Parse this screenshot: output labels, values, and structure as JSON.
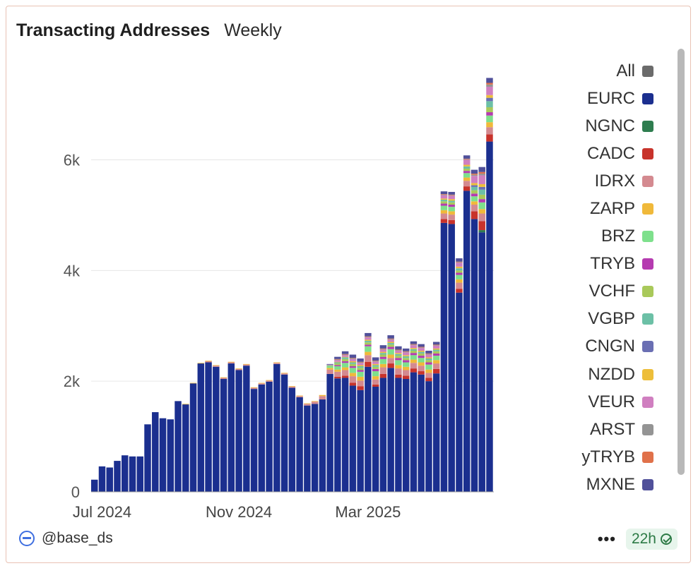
{
  "header": {
    "title": "Transacting Addresses",
    "subtitle": "Weekly"
  },
  "footer": {
    "handle": "@base_ds",
    "more": "•••",
    "freshness": "22h"
  },
  "legend": [
    {
      "label": "All",
      "color": "#6b6b6b"
    },
    {
      "label": "EURC",
      "color": "#1b2f8f"
    },
    {
      "label": "NGNC",
      "color": "#2e7d4f"
    },
    {
      "label": "CADC",
      "color": "#c8332b"
    },
    {
      "label": "IDRX",
      "color": "#d48a90"
    },
    {
      "label": "ZARP",
      "color": "#f0b93a"
    },
    {
      "label": "BRZ",
      "color": "#7ee08c"
    },
    {
      "label": "TRYB",
      "color": "#b53bb0"
    },
    {
      "label": "VCHF",
      "color": "#a9c95a"
    },
    {
      "label": "VGBP",
      "color": "#6cc0a6"
    },
    {
      "label": "CNGN",
      "color": "#6a6fb3"
    },
    {
      "label": "NZDD",
      "color": "#edbe3a"
    },
    {
      "label": "VEUR",
      "color": "#d07fc0"
    },
    {
      "label": "ARST",
      "color": "#949494"
    },
    {
      "label": "yTRYB",
      "color": "#e0714a"
    },
    {
      "label": "MXNE",
      "color": "#50509a"
    }
  ],
  "chart_data": {
    "type": "bar",
    "stacked": true,
    "title": "Transacting Addresses",
    "subtitle": "Weekly",
    "y_ticks": [
      "0",
      "2k",
      "4k",
      "6k"
    ],
    "x_ticks": [
      "Jul 2024",
      "Nov 2024",
      "Mar 2025"
    ],
    "ylim": [
      0,
      7600
    ],
    "grid": true,
    "legend_position": "right",
    "x": [
      "2024-06-24",
      "2024-07-01",
      "2024-07-08",
      "2024-07-15",
      "2024-07-22",
      "2024-07-29",
      "2024-08-05",
      "2024-08-12",
      "2024-08-19",
      "2024-08-26",
      "2024-09-02",
      "2024-09-09",
      "2024-09-16",
      "2024-09-23",
      "2024-09-30",
      "2024-10-07",
      "2024-10-14",
      "2024-10-21",
      "2024-10-28",
      "2024-11-04",
      "2024-11-11",
      "2024-11-18",
      "2024-11-25",
      "2024-12-02",
      "2024-12-09",
      "2024-12-16",
      "2024-12-23",
      "2024-12-30",
      "2025-01-06",
      "2025-01-13",
      "2025-01-20",
      "2025-01-27",
      "2025-02-03",
      "2025-02-10",
      "2025-02-17",
      "2025-02-24",
      "2025-03-03",
      "2025-03-10",
      "2025-03-17",
      "2025-03-24",
      "2025-03-31",
      "2025-04-07",
      "2025-04-14",
      "2025-04-21",
      "2025-04-28",
      "2025-05-05",
      "2025-05-12",
      "2025-05-19",
      "2025-05-26",
      "2025-06-02",
      "2025-06-09",
      "2025-06-16",
      "2025-06-23"
    ],
    "series": [
      {
        "name": "EURC",
        "values": [
          220,
          460,
          440,
          560,
          660,
          640,
          640,
          1220,
          1440,
          1330,
          1310,
          1640,
          1580,
          1960,
          2320,
          2340,
          2260,
          2040,
          2320,
          2200,
          2280,
          1860,
          1940,
          1990,
          2310,
          2120,
          1880,
          1710,
          1560,
          1590,
          1670,
          2130,
          2050,
          2060,
          1920,
          1840,
          2260,
          1900,
          2060,
          2240,
          2060,
          2040,
          2160,
          2120,
          2000,
          2140,
          4860,
          4840,
          3600,
          5440,
          4930,
          4690,
          6330
        ]
      },
      {
        "name": "NGNC",
        "values": [
          0,
          0,
          0,
          0,
          0,
          0,
          0,
          0,
          0,
          0,
          0,
          0,
          0,
          0,
          0,
          0,
          0,
          0,
          0,
          0,
          0,
          0,
          0,
          0,
          0,
          0,
          0,
          0,
          0,
          0,
          0,
          0,
          0,
          0,
          0,
          0,
          0,
          0,
          0,
          0,
          0,
          0,
          0,
          0,
          0,
          0,
          0,
          0,
          0,
          0,
          0,
          40,
          0
        ]
      },
      {
        "name": "CADC",
        "values": [
          0,
          0,
          0,
          0,
          0,
          0,
          0,
          0,
          0,
          0,
          0,
          0,
          0,
          0,
          0,
          0,
          0,
          0,
          0,
          0,
          0,
          0,
          0,
          0,
          0,
          0,
          0,
          0,
          0,
          0,
          0,
          0,
          30,
          40,
          50,
          70,
          90,
          40,
          70,
          80,
          60,
          60,
          70,
          60,
          60,
          80,
          70,
          70,
          70,
          80,
          140,
          160,
          130
        ]
      },
      {
        "name": "IDRX",
        "values": [
          0,
          0,
          0,
          0,
          0,
          0,
          0,
          0,
          0,
          0,
          0,
          0,
          0,
          0,
          0,
          20,
          20,
          20,
          20,
          20,
          20,
          20,
          20,
          20,
          20,
          20,
          20,
          20,
          30,
          40,
          60,
          80,
          90,
          100,
          120,
          100,
          120,
          90,
          120,
          100,
          110,
          100,
          100,
          100,
          90,
          100,
          100,
          100,
          110,
          100,
          120,
          140,
          130
        ]
      },
      {
        "name": "ZARP",
        "values": [
          0,
          0,
          0,
          0,
          0,
          0,
          0,
          0,
          0,
          0,
          0,
          0,
          10,
          10,
          10,
          10,
          10,
          10,
          10,
          10,
          10,
          10,
          10,
          10,
          10,
          10,
          10,
          10,
          10,
          10,
          20,
          30,
          40,
          50,
          60,
          70,
          60,
          60,
          60,
          60,
          60,
          60,
          60,
          60,
          60,
          60,
          60,
          60,
          60,
          60,
          60,
          80,
          90
        ]
      },
      {
        "name": "BRZ",
        "values": [
          0,
          0,
          0,
          0,
          0,
          0,
          0,
          0,
          0,
          0,
          0,
          0,
          0,
          0,
          0,
          0,
          0,
          0,
          0,
          0,
          0,
          0,
          0,
          0,
          0,
          0,
          0,
          0,
          0,
          0,
          0,
          30,
          60,
          80,
          90,
          90,
          100,
          90,
          90,
          100,
          90,
          80,
          80,
          80,
          90,
          80,
          80,
          80,
          80,
          80,
          90,
          120,
          120
        ]
      },
      {
        "name": "TRYB",
        "values": [
          0,
          0,
          0,
          0,
          0,
          0,
          0,
          0,
          0,
          0,
          0,
          0,
          0,
          0,
          0,
          0,
          0,
          0,
          0,
          0,
          0,
          0,
          0,
          0,
          0,
          0,
          0,
          0,
          0,
          0,
          0,
          0,
          20,
          30,
          30,
          30,
          30,
          40,
          40,
          40,
          40,
          40,
          40,
          40,
          40,
          40,
          40,
          40,
          40,
          40,
          50,
          60,
          60
        ]
      },
      {
        "name": "VCHF",
        "values": [
          0,
          0,
          0,
          0,
          0,
          0,
          0,
          0,
          0,
          0,
          0,
          0,
          0,
          0,
          0,
          0,
          0,
          0,
          0,
          0,
          0,
          0,
          0,
          0,
          0,
          0,
          0,
          0,
          0,
          0,
          0,
          10,
          30,
          40,
          40,
          40,
          40,
          40,
          40,
          40,
          40,
          40,
          40,
          40,
          40,
          40,
          40,
          40,
          40,
          40,
          60,
          80,
          90
        ]
      },
      {
        "name": "VGBP",
        "values": [
          0,
          0,
          0,
          0,
          0,
          0,
          0,
          0,
          0,
          0,
          0,
          0,
          0,
          0,
          0,
          0,
          0,
          0,
          0,
          0,
          0,
          0,
          0,
          0,
          0,
          0,
          0,
          0,
          0,
          0,
          0,
          10,
          20,
          30,
          30,
          30,
          30,
          30,
          30,
          30,
          30,
          30,
          30,
          30,
          30,
          30,
          30,
          30,
          40,
          40,
          60,
          90,
          110
        ]
      },
      {
        "name": "CNGN",
        "values": [
          0,
          0,
          0,
          0,
          0,
          0,
          0,
          0,
          0,
          0,
          0,
          0,
          0,
          0,
          0,
          0,
          0,
          0,
          0,
          0,
          0,
          0,
          0,
          0,
          0,
          0,
          0,
          0,
          0,
          0,
          0,
          0,
          0,
          0,
          0,
          0,
          0,
          0,
          0,
          0,
          0,
          0,
          0,
          0,
          0,
          0,
          0,
          0,
          0,
          0,
          30,
          50,
          60
        ]
      },
      {
        "name": "NZDD",
        "values": [
          0,
          0,
          0,
          0,
          0,
          0,
          0,
          0,
          0,
          0,
          0,
          0,
          0,
          0,
          0,
          0,
          0,
          0,
          0,
          0,
          0,
          0,
          0,
          0,
          0,
          0,
          0,
          0,
          0,
          0,
          0,
          0,
          10,
          10,
          20,
          20,
          20,
          20,
          20,
          20,
          20,
          20,
          20,
          20,
          20,
          20,
          20,
          30,
          30,
          30,
          40,
          50,
          50
        ]
      },
      {
        "name": "VEUR",
        "values": [
          0,
          0,
          0,
          0,
          0,
          0,
          0,
          0,
          0,
          0,
          0,
          0,
          0,
          0,
          0,
          0,
          0,
          0,
          0,
          0,
          0,
          0,
          0,
          0,
          0,
          0,
          0,
          0,
          0,
          0,
          0,
          10,
          30,
          30,
          40,
          40,
          40,
          40,
          40,
          40,
          40,
          50,
          50,
          50,
          50,
          50,
          60,
          60,
          70,
          90,
          130,
          160,
          150
        ]
      },
      {
        "name": "ARST",
        "values": [
          0,
          0,
          0,
          0,
          0,
          0,
          0,
          0,
          0,
          0,
          0,
          0,
          0,
          0,
          0,
          0,
          0,
          0,
          0,
          0,
          0,
          0,
          0,
          0,
          0,
          0,
          0,
          0,
          0,
          0,
          0,
          0,
          10,
          10,
          10,
          10,
          10,
          10,
          10,
          10,
          10,
          10,
          10,
          10,
          10,
          10,
          10,
          10,
          10,
          10,
          20,
          30,
          40
        ]
      },
      {
        "name": "yTRYB",
        "values": [
          0,
          0,
          0,
          0,
          0,
          0,
          0,
          0,
          0,
          0,
          0,
          0,
          0,
          0,
          0,
          0,
          0,
          0,
          0,
          0,
          0,
          0,
          0,
          0,
          0,
          0,
          0,
          0,
          0,
          0,
          0,
          0,
          10,
          10,
          10,
          10,
          10,
          10,
          10,
          10,
          10,
          10,
          10,
          10,
          10,
          10,
          10,
          10,
          10,
          10,
          20,
          30,
          30
        ]
      },
      {
        "name": "MXNE",
        "values": [
          0,
          0,
          0,
          0,
          0,
          0,
          0,
          0,
          0,
          0,
          0,
          0,
          0,
          0,
          0,
          0,
          0,
          0,
          0,
          0,
          0,
          0,
          0,
          0,
          0,
          0,
          0,
          0,
          0,
          0,
          0,
          10,
          40,
          50,
          60,
          60,
          60,
          60,
          60,
          60,
          60,
          50,
          50,
          50,
          50,
          50,
          50,
          50,
          60,
          60,
          70,
          90,
          90
        ]
      }
    ]
  }
}
